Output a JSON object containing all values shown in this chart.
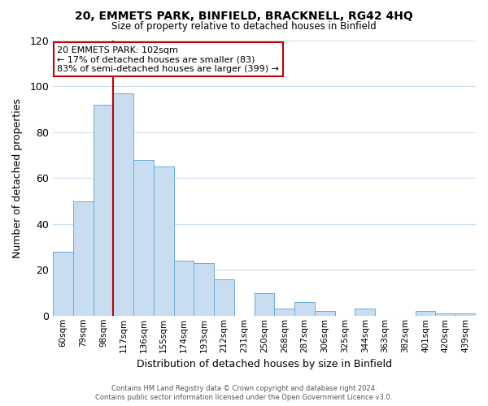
{
  "title": "20, EMMETS PARK, BINFIELD, BRACKNELL, RG42 4HQ",
  "subtitle": "Size of property relative to detached houses in Binfield",
  "xlabel": "Distribution of detached houses by size in Binfield",
  "ylabel": "Number of detached properties",
  "bar_labels": [
    "60sqm",
    "79sqm",
    "98sqm",
    "117sqm",
    "136sqm",
    "155sqm",
    "174sqm",
    "193sqm",
    "212sqm",
    "231sqm",
    "250sqm",
    "268sqm",
    "287sqm",
    "306sqm",
    "325sqm",
    "344sqm",
    "363sqm",
    "382sqm",
    "401sqm",
    "420sqm",
    "439sqm"
  ],
  "bar_values": [
    28,
    50,
    92,
    97,
    68,
    65,
    24,
    23,
    16,
    0,
    10,
    3,
    6,
    2,
    0,
    3,
    0,
    0,
    2,
    1,
    1
  ],
  "bar_color": "#c9ddf0",
  "bar_edge_color": "#6aaed6",
  "ylim": [
    0,
    120
  ],
  "yticks": [
    0,
    20,
    40,
    60,
    80,
    100,
    120
  ],
  "vline_pos": 2.5,
  "vline_color": "#c00000",
  "annotation_title": "20 EMMETS PARK: 102sqm",
  "annotation_line1": "← 17% of detached houses are smaller (83)",
  "annotation_line2": "83% of semi-detached houses are larger (399) →",
  "annotation_box_color": "#ffffff",
  "annotation_box_edge": "#c00000",
  "footer1": "Contains HM Land Registry data © Crown copyright and database right 2024.",
  "footer2": "Contains public sector information licensed under the Open Government Licence v3.0.",
  "background_color": "#ffffff",
  "grid_color": "#ccdff0"
}
